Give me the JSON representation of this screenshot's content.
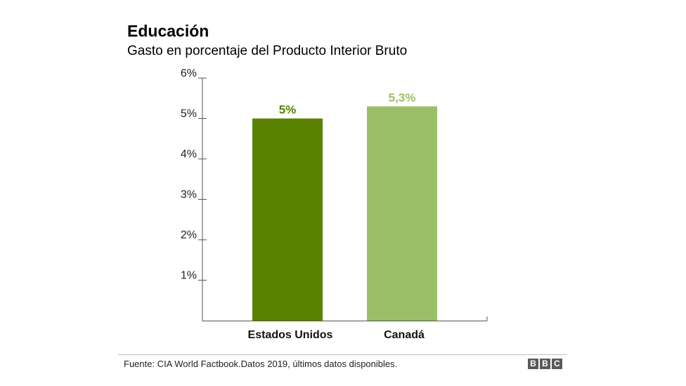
{
  "header": {
    "title": "Educación",
    "subtitle": "Gasto en porcentaje del Producto Interior Bruto"
  },
  "footer": {
    "source": "Fuente: CIA World Factbook.Datos 2019, últimos datos disponibles.",
    "logo_letters": [
      "B",
      "B",
      "C"
    ]
  },
  "chart_data": {
    "type": "bar",
    "title": "Educación",
    "subtitle": "Gasto en porcentaje del Producto Interior Bruto",
    "categories": [
      "Estados Unidos",
      "Canadá"
    ],
    "values": [
      5.0,
      5.3
    ],
    "value_labels": [
      "5%",
      "5,3%"
    ],
    "colors": [
      "#588200",
      "#9bbf68"
    ],
    "ylim": [
      0,
      6
    ],
    "yticks": [
      1,
      2,
      3,
      4,
      5,
      6
    ],
    "ytick_labels": [
      "1%",
      "2%",
      "3%",
      "4%",
      "5%",
      "6%"
    ],
    "xlabel": "",
    "ylabel": "",
    "grid": false
  }
}
